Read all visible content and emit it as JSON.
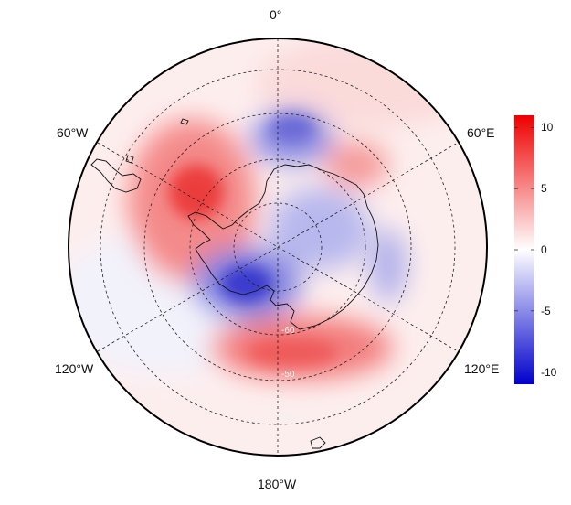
{
  "projection": "south-polar-stereographic",
  "longitude_labels": [
    {
      "key": "lon-0",
      "text": "0°"
    },
    {
      "key": "lon-60e",
      "text": "60°E"
    },
    {
      "key": "lon-120e",
      "text": "120°E"
    },
    {
      "key": "lon-180",
      "text": "180°W"
    },
    {
      "key": "lon-120w",
      "text": "120°W"
    },
    {
      "key": "lon-60w",
      "text": "60°W"
    }
  ],
  "faint_latitude_labels": [
    {
      "key": "lat-a",
      "text": "-60"
    },
    {
      "key": "lat-b",
      "text": "-50"
    },
    {
      "key": "lat-c",
      "text": "-40"
    }
  ],
  "colorbar": {
    "min": -11,
    "max": 11,
    "ticks": [
      10,
      5,
      0,
      -5,
      -10
    ],
    "tick_labels": [
      "10",
      "5",
      "0",
      "-5",
      "-10"
    ],
    "colormap": "blue-white-red",
    "colors": {
      "low": "#0000cc",
      "mid": "#ffffff",
      "high": "#ee0000"
    }
  },
  "graticule": {
    "style": "dashed",
    "meridian_step_deg": 60,
    "latitude_circles": 4
  },
  "anomaly_field": {
    "description_type": "gridded anomaly",
    "features": [
      {
        "name": "positive-weddell-peninsula",
        "sign": "positive",
        "peak": 9
      },
      {
        "name": "positive-ross-sea-north",
        "sign": "positive",
        "peak": 6
      },
      {
        "name": "positive-indian-ocean",
        "sign": "positive",
        "peak": 5
      },
      {
        "name": "negative-south-atlantic",
        "sign": "negative",
        "peak": -5
      },
      {
        "name": "negative-east-antarctica",
        "sign": "negative",
        "peak": -4
      },
      {
        "name": "negative-amundsen-bellingshausen",
        "sign": "negative",
        "peak": -9
      },
      {
        "name": "negative-east-indian-coast",
        "sign": "negative",
        "peak": -4
      }
    ]
  }
}
